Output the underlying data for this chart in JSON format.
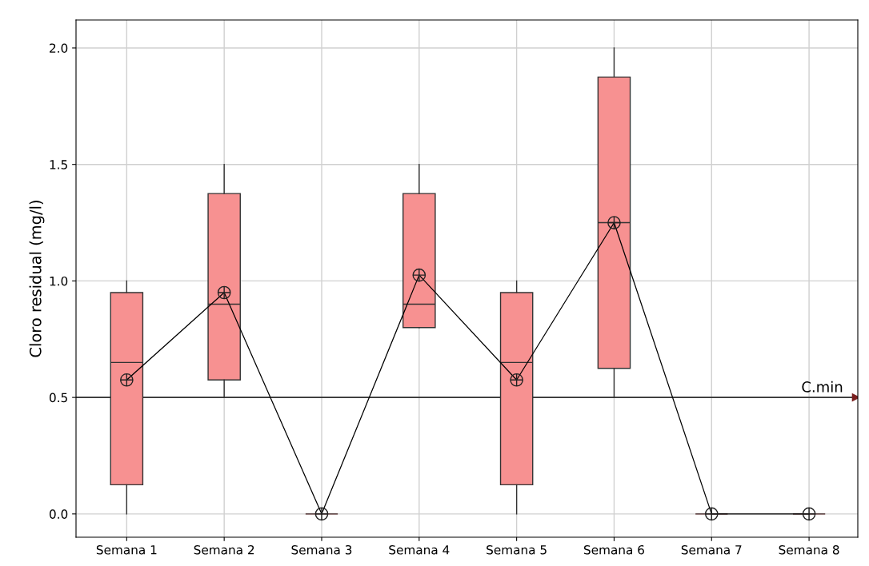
{
  "chart_data": {
    "type": "box",
    "ylabel": "Cloro residual (mg/l)",
    "categories": [
      "Semana 1",
      "Semana 2",
      "Semana 3",
      "Semana 4",
      "Semana 5",
      "Semana 6",
      "Semana 7",
      "Semana 8"
    ],
    "series": [
      {
        "type": "box",
        "color": "#f79191",
        "boxes": [
          {
            "low": 0,
            "q1": 0.125,
            "median": 0.65,
            "q3": 0.95,
            "high": 1.0
          },
          {
            "low": 0.5,
            "q1": 0.575,
            "median": 0.9,
            "q3": 1.375,
            "high": 1.5
          },
          {
            "low": 0,
            "q1": 0,
            "median": 0,
            "q3": 0,
            "high": 0
          },
          {
            "low": 0.8,
            "q1": 0.8,
            "median": 0.9,
            "q3": 1.375,
            "high": 1.5
          },
          {
            "low": 0,
            "q1": 0.125,
            "median": 0.65,
            "q3": 0.95,
            "high": 1.0
          },
          {
            "low": 0.5,
            "q1": 0.625,
            "median": 1.25,
            "q3": 1.875,
            "high": 2.0
          },
          {
            "low": 0,
            "q1": 0,
            "median": 0,
            "q3": 0,
            "high": 0
          },
          {
            "low": 0,
            "q1": 0,
            "median": 0,
            "q3": 0,
            "high": 0
          }
        ]
      },
      {
        "type": "line",
        "color": "#000000",
        "marker": "cross",
        "values": [
          0.575,
          0.95,
          0,
          1.025,
          0.575,
          1.25,
          0,
          0
        ]
      }
    ],
    "ref_lines": [
      {
        "axis": "y",
        "value": 0.5,
        "label": "C.min",
        "color": "#333333"
      }
    ],
    "ylim": [
      -0.1,
      2.12
    ],
    "yticks": [
      {
        "value": 0,
        "label": "0.0"
      },
      {
        "value": 0.5,
        "label": "0.5"
      },
      {
        "value": 1,
        "label": "1.0"
      },
      {
        "value": 1.5,
        "label": "1.5"
      },
      {
        "value": 2,
        "label": "2.0"
      }
    ],
    "grid": true
  }
}
